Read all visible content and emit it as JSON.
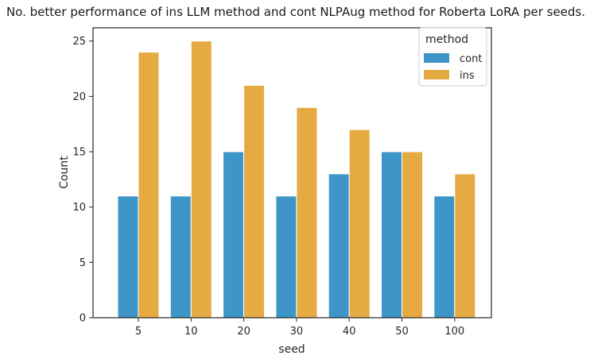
{
  "chart_data": {
    "type": "bar",
    "title": "No. better performance of ins LLM method and cont NLPAug method for Roberta LoRA per seeds.",
    "xlabel": "seed",
    "ylabel": "Count",
    "categories": [
      "5",
      "10",
      "20",
      "30",
      "40",
      "50",
      "100"
    ],
    "series": [
      {
        "name": "cont",
        "color": "#3e95c7",
        "values": [
          11,
          11,
          15,
          11,
          13,
          15,
          11
        ]
      },
      {
        "name": "ins",
        "color": "#e5aa42",
        "values": [
          24,
          25,
          21,
          19,
          17,
          15,
          13
        ]
      }
    ],
    "ylim": [
      0,
      26.2
    ],
    "yticks": [
      0,
      5,
      10,
      15,
      20,
      25
    ],
    "legend": {
      "title": "method",
      "placement": "top-right"
    }
  }
}
